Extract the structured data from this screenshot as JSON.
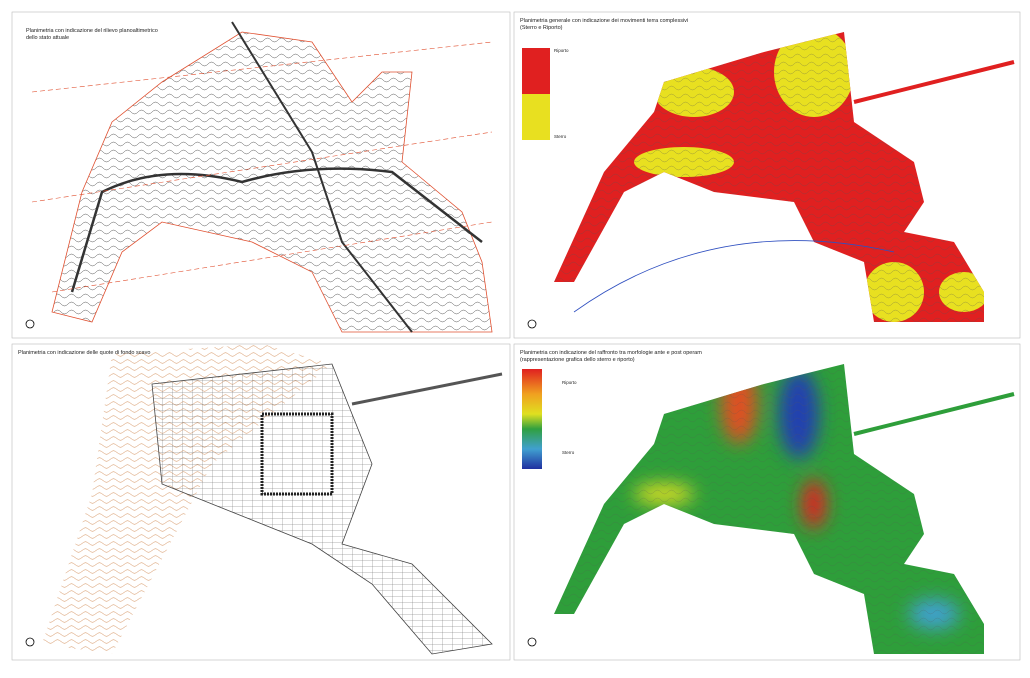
{
  "panels": [
    {
      "title": [
        "Planimetria con indicazione del rilievo planoaltimetrico",
        "dello stato attuale"
      ]
    },
    {
      "title": [
        "Planimetria generale con indicazione dei movimenti terra complessivi",
        "(Sterro e Riporto)"
      ],
      "legend": [
        "Riporto",
        "Sterro"
      ]
    },
    {
      "title": [
        "Planimetria con indicazione delle quote di fondo scavo"
      ]
    },
    {
      "title": [
        "Planimetria con indicazione del raffronto tra morfologie ante e post operam",
        "(rappresentazione grafica dello sterro e riporto)"
      ],
      "legend": [
        "Riporto",
        "Sterro"
      ]
    }
  ]
}
